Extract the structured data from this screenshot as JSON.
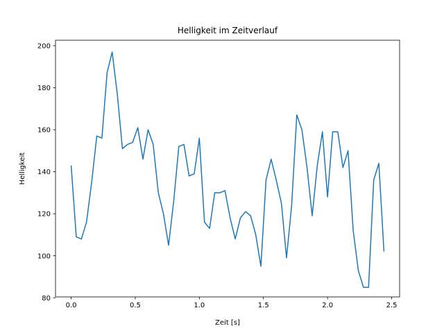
{
  "chart_data": {
    "type": "line",
    "title": "Helligkeit im Zeitverlauf",
    "xlabel": "Zeit [s]",
    "ylabel": "Helligkeit",
    "xlim": [
      -0.122,
      2.562
    ],
    "ylim": [
      80.4,
      202.6
    ],
    "xticks": [
      0.0,
      0.5,
      1.0,
      1.5,
      2.0,
      2.5
    ],
    "xtick_labels": [
      "0.0",
      "0.5",
      "1.0",
      "1.5",
      "2.0",
      "2.5"
    ],
    "yticks": [
      80,
      100,
      120,
      140,
      160,
      180,
      200
    ],
    "ytick_labels": [
      "80",
      "100",
      "120",
      "140",
      "160",
      "180",
      "200"
    ],
    "grid": false,
    "line_color": "#1f77b4",
    "series": [
      {
        "x": [
          0.0,
          0.04,
          0.08,
          0.12,
          0.16,
          0.2,
          0.24,
          0.28,
          0.32,
          0.36,
          0.4,
          0.44,
          0.48,
          0.52,
          0.56,
          0.6,
          0.64,
          0.68,
          0.72,
          0.76,
          0.8,
          0.84,
          0.88,
          0.92,
          0.96,
          1.0,
          1.04,
          1.08,
          1.12,
          1.16,
          1.2,
          1.24,
          1.28,
          1.32,
          1.36,
          1.4,
          1.44,
          1.48,
          1.52,
          1.56,
          1.6,
          1.64,
          1.68,
          1.72,
          1.76,
          1.8,
          1.84,
          1.88,
          1.92,
          1.96,
          2.0,
          2.04,
          2.08,
          2.12,
          2.16,
          2.2,
          2.24,
          2.28,
          2.32,
          2.36,
          2.4,
          2.44
        ],
        "y": [
          143,
          109,
          108,
          116,
          135,
          157,
          156,
          187,
          197,
          177,
          151,
          153,
          154,
          161,
          146,
          160,
          153,
          130,
          120,
          105,
          126,
          152,
          153,
          138,
          139,
          156,
          116,
          113,
          130,
          130,
          131,
          118,
          108,
          118,
          121,
          119,
          110,
          95,
          136,
          146,
          136,
          125,
          99,
          124,
          167,
          160,
          142,
          119,
          143,
          159,
          128,
          159,
          159,
          142,
          150,
          112,
          93,
          85,
          85,
          136,
          144,
          102
        ]
      }
    ]
  }
}
